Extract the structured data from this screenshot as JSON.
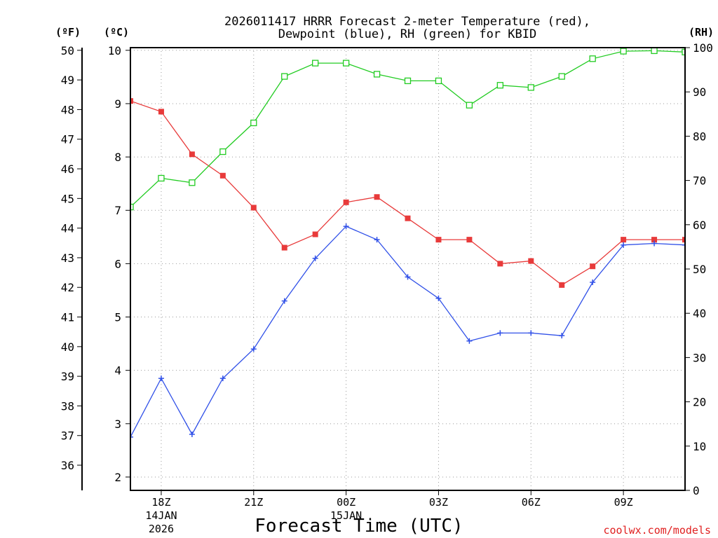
{
  "chart_data": {
    "type": "line",
    "title_line1": "2026011417 HRRR Forecast 2-meter Temperature (red),",
    "title_line2": "Dewpoint (blue), RH (green) for KBID",
    "xlabel": "Forecast Time (UTC)",
    "credit": "coolwx.com/models",
    "axes": {
      "fahrenheit": {
        "label": "(ºF)",
        "ticks": [
          36,
          37,
          38,
          39,
          40,
          41,
          42,
          43,
          44,
          45,
          46,
          47,
          48,
          49,
          50
        ]
      },
      "celsius": {
        "label": "(ºC)",
        "ticks": [
          2,
          3,
          4,
          5,
          6,
          7,
          8,
          9,
          10
        ],
        "ylim": [
          1.75,
          10.05
        ]
      },
      "rh": {
        "label": "(RH)",
        "ticks": [
          0,
          10,
          20,
          30,
          40,
          50,
          60,
          70,
          80,
          90,
          100
        ],
        "ylim": [
          0,
          100
        ]
      }
    },
    "x_hours": [
      17,
      18,
      19,
      20,
      21,
      22,
      23,
      24,
      25,
      26,
      27,
      28,
      29,
      30,
      31,
      32,
      33,
      34,
      35
    ],
    "x_ticks": [
      {
        "hour": 18,
        "label": "18Z",
        "date1": "14JAN",
        "date2": "2026"
      },
      {
        "hour": 21,
        "label": "21Z",
        "date1": "",
        "date2": ""
      },
      {
        "hour": 24,
        "label": "00Z",
        "date1": "15JAN",
        "date2": ""
      },
      {
        "hour": 27,
        "label": "03Z",
        "date1": "",
        "date2": ""
      },
      {
        "hour": 30,
        "label": "06Z",
        "date1": "",
        "date2": ""
      },
      {
        "hour": 33,
        "label": "09Z",
        "date1": "",
        "date2": ""
      }
    ],
    "series": [
      {
        "name": "2-meter Temperature",
        "unit": "C",
        "color": "#e83a3a",
        "values": [
          9.05,
          8.85,
          8.05,
          7.65,
          7.05,
          6.3,
          6.55,
          7.15,
          7.25,
          6.85,
          6.45,
          6.45,
          6.0,
          6.05,
          5.6,
          5.95,
          6.45,
          6.45,
          6.45
        ]
      },
      {
        "name": "Dewpoint",
        "unit": "C",
        "color": "#3050e8",
        "values": [
          2.75,
          3.85,
          2.8,
          3.85,
          4.4,
          5.3,
          6.1,
          6.7,
          6.45,
          5.75,
          5.35,
          4.55,
          4.7,
          4.7,
          4.65,
          5.65,
          6.35,
          6.38,
          6.35
        ]
      },
      {
        "name": "RH",
        "unit": "%",
        "color": "#22cc22",
        "values": [
          64,
          70.5,
          69.5,
          76.5,
          83,
          93.5,
          96.5,
          96.5,
          94,
          92.5,
          92.5,
          87,
          91.5,
          91,
          93.5,
          97.5,
          99.2,
          99.3,
          99
        ]
      }
    ]
  }
}
